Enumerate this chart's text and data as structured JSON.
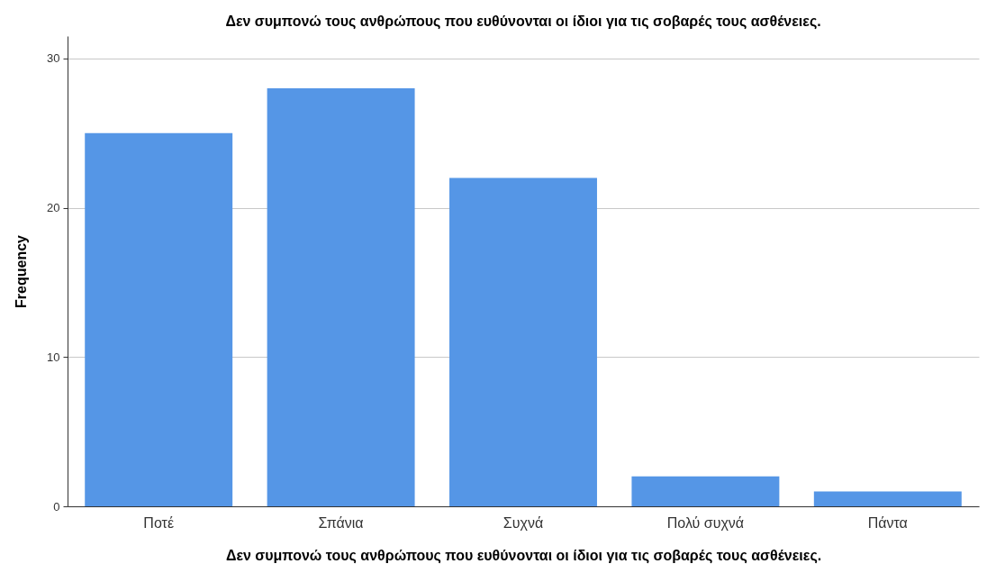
{
  "chart_data": {
    "type": "bar",
    "title": "Δεν συμπονώ τους ανθρώπους που ευθύνονται οι ίδιοι για τις σοβαρές τους ασθένειες.",
    "xlabel": "Δεν συμπονώ τους ανθρώπους που ευθύνονται οι ίδιοι για τις σοβαρές τους ασθένειες.",
    "ylabel": "Frequency",
    "categories": [
      "Ποτέ",
      "Σπάνια",
      "Συχνά",
      "Πολύ συχνά",
      "Πάντα"
    ],
    "values": [
      25,
      28,
      22,
      2,
      1
    ],
    "color": "#5596e6",
    "ylim": [
      0,
      31.5
    ],
    "yticks": [
      0,
      10,
      20,
      30
    ],
    "grid": "y"
  }
}
